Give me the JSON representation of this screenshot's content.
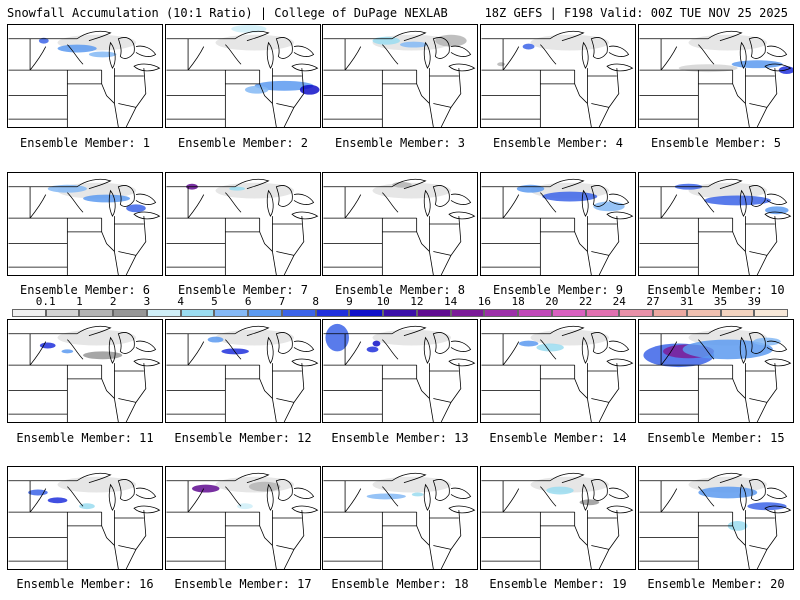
{
  "header": {
    "title": "Snowfall Accumulation (10:1 Ratio) | College of DuPage NEXLAB",
    "run_info": "18Z GEFS | F198 Valid: 00Z TUE NOV 25 2025"
  },
  "members": [
    {
      "label": "Ensemble Member: 1"
    },
    {
      "label": "Ensemble Member: 2"
    },
    {
      "label": "Ensemble Member: 3"
    },
    {
      "label": "Ensemble Member: 4"
    },
    {
      "label": "Ensemble Member: 5"
    },
    {
      "label": "Ensemble Member: 6"
    },
    {
      "label": "Ensemble Member: 7"
    },
    {
      "label": "Ensemble Member: 8"
    },
    {
      "label": "Ensemble Member: 9"
    },
    {
      "label": "Ensemble Member: 10"
    },
    {
      "label": "Ensemble Member: 11"
    },
    {
      "label": "Ensemble Member: 12"
    },
    {
      "label": "Ensemble Member: 13"
    },
    {
      "label": "Ensemble Member: 14"
    },
    {
      "label": "Ensemble Member: 15"
    },
    {
      "label": "Ensemble Member: 16"
    },
    {
      "label": "Ensemble Member: 17"
    },
    {
      "label": "Ensemble Member: 18"
    },
    {
      "label": "Ensemble Member: 19"
    },
    {
      "label": "Ensemble Member: 20"
    }
  ],
  "colorbar": {
    "levels": [
      "0.1",
      "1",
      "2",
      "3",
      "4",
      "5",
      "6",
      "7",
      "8",
      "9",
      "10",
      "12",
      "14",
      "16",
      "18",
      "20",
      "22",
      "24",
      "27",
      "31",
      "35",
      "39"
    ],
    "colors": [
      "#f0f0f0",
      "#d4d4d4",
      "#b4b4b4",
      "#969696",
      "#cfeff8",
      "#9adcf0",
      "#84b8f5",
      "#5c9af0",
      "#3c64e8",
      "#2030dc",
      "#1010c8",
      "#3c10a8",
      "#600c90",
      "#7c1c98",
      "#9c30a8",
      "#c048b8",
      "#d860c0",
      "#e070b0",
      "#e890a8",
      "#eca8a0",
      "#f0c0b0",
      "#f4d4c0",
      "#f8e8d8"
    ]
  }
}
